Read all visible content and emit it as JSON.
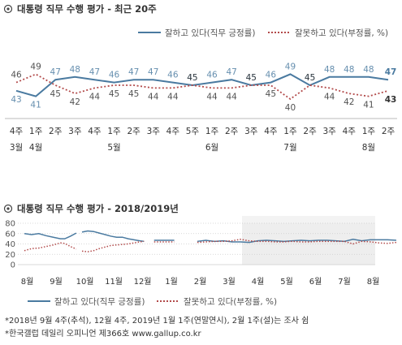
{
  "colors": {
    "approve": "#4a7aa0",
    "disapprove": "#b24a4a",
    "approve_label": "#4a7aa0",
    "disapprove_label": "#333333",
    "grid": "#cccccc",
    "shade": "#eeeeee"
  },
  "chart_data": [
    {
      "type": "line",
      "title": "대통령 직무 수행 평가 - 최근 20주",
      "title_icon": "target-circle-icon",
      "legend": {
        "approve": "잘하고 있다(직무 긍정률)",
        "disapprove": "잘못하고 있다(부정률, %)"
      },
      "x": [
        "4주|3월",
        "1주|4월",
        "2주",
        "3주",
        "4주",
        "1주|5월",
        "2주",
        "3주",
        "4주",
        "5주",
        "1주|6월",
        "2주",
        "3주",
        "4주",
        "1주|7월",
        "2주",
        "3주",
        "4주",
        "1주|8월",
        "2주"
      ],
      "series": [
        {
          "name": "잘하고 있다(직무 긍정률)",
          "key": "approve",
          "values": [
            43,
            41,
            47,
            48,
            47,
            46,
            47,
            47,
            46,
            45,
            46,
            47,
            45,
            46,
            49,
            45,
            48,
            48,
            48,
            47
          ]
        },
        {
          "name": "잘못하고 있다(부정률, %)",
          "key": "disapprove",
          "values": [
            46,
            49,
            45,
            42,
            44,
            45,
            45,
            44,
            44,
            45,
            44,
            44,
            45,
            45,
            40,
            45,
            44,
            42,
            41,
            43
          ]
        }
      ],
      "ylim": [
        35,
        55
      ]
    },
    {
      "type": "line",
      "title": "대통령 직무 수행 평가 - 2018/2019년",
      "title_icon": "target-circle-icon",
      "x_labels": [
        "8월",
        "9월",
        "10월",
        "11월",
        "12월",
        "1월",
        "2월",
        "3월",
        "4월",
        "5월",
        "6월",
        "7월",
        "8월"
      ],
      "y_ticks": [
        0,
        20,
        40,
        60,
        80
      ],
      "ylim": [
        0,
        80
      ],
      "highlight": "4월–8월",
      "legend": {
        "approve": "잘하고 있다(직무 긍정률)",
        "disapprove": "잘못하고 있다(부정률, %)"
      },
      "series": [
        {
          "name": "잘하고 있다(직무 긍정률)",
          "key": "approve",
          "segments": [
            [
              [
                0,
                60
              ],
              [
                0.25,
                58
              ],
              [
                0.5,
                60
              ],
              [
                0.75,
                56
              ],
              [
                1,
                53
              ],
              [
                1.25,
                50
              ],
              [
                1.4,
                50
              ],
              [
                1.6,
                55
              ],
              [
                1.8,
                61
              ]
            ],
            [
              [
                2.0,
                63
              ],
              [
                2.2,
                65
              ],
              [
                2.4,
                64
              ],
              [
                2.6,
                61
              ],
              [
                2.8,
                58
              ],
              [
                3.0,
                55
              ],
              [
                3.2,
                53
              ],
              [
                3.4,
                53
              ],
              [
                3.6,
                50
              ],
              [
                3.8,
                48
              ],
              [
                4.0,
                46
              ],
              [
                4.15,
                45
              ]
            ],
            [
              [
                4.5,
                47
              ],
              [
                5.2,
                47
              ]
            ],
            [
              [
                6.0,
                45
              ],
              [
                6.3,
                47
              ],
              [
                6.6,
                45
              ],
              [
                6.9,
                46
              ],
              [
                7.2,
                44
              ],
              [
                7.5,
                44
              ],
              [
                7.8,
                43
              ],
              [
                8.1,
                46
              ],
              [
                8.4,
                47
              ],
              [
                8.7,
                46
              ],
              [
                9.0,
                45
              ],
              [
                9.3,
                46
              ],
              [
                9.6,
                47
              ],
              [
                9.9,
                46
              ],
              [
                10.2,
                47
              ],
              [
                10.5,
                47
              ],
              [
                10.8,
                46
              ],
              [
                11.1,
                45
              ],
              [
                11.4,
                49
              ],
              [
                11.7,
                46
              ],
              [
                12.0,
                48
              ],
              [
                12.3,
                48
              ],
              [
                12.6,
                48
              ],
              [
                12.9,
                47
              ]
            ]
          ]
        },
        {
          "name": "잘못하고 있다(부정률, %)",
          "key": "disapprove",
          "segments": [
            [
              [
                0,
                27
              ],
              [
                0.25,
                31
              ],
              [
                0.5,
                32
              ],
              [
                0.75,
                35
              ],
              [
                1,
                38
              ],
              [
                1.25,
                42
              ],
              [
                1.4,
                41
              ],
              [
                1.6,
                35
              ],
              [
                1.8,
                30
              ]
            ],
            [
              [
                2.0,
                26
              ],
              [
                2.2,
                25
              ],
              [
                2.4,
                27
              ],
              [
                2.6,
                31
              ],
              [
                2.8,
                34
              ],
              [
                3.0,
                37
              ],
              [
                3.2,
                38
              ],
              [
                3.4,
                39
              ],
              [
                3.6,
                40
              ],
              [
                3.8,
                42
              ],
              [
                4.0,
                44
              ],
              [
                4.15,
                45
              ]
            ],
            [
              [
                4.5,
                44
              ],
              [
                5.2,
                44
              ]
            ],
            [
              [
                6.0,
                43
              ],
              [
                6.3,
                44
              ],
              [
                6.6,
                45
              ],
              [
                6.9,
                45
              ],
              [
                7.2,
                46
              ],
              [
                7.5,
                49
              ],
              [
                7.8,
                46
              ],
              [
                8.1,
                45
              ],
              [
                8.4,
                45
              ],
              [
                8.7,
                44
              ],
              [
                9.0,
                44
              ],
              [
                9.3,
                45
              ],
              [
                9.6,
                44
              ],
              [
                9.9,
                44
              ],
              [
                10.2,
                45
              ],
              [
                10.5,
                45
              ],
              [
                10.8,
                45
              ],
              [
                11.1,
                45
              ],
              [
                11.4,
                40
              ],
              [
                11.7,
                45
              ],
              [
                12.0,
                44
              ],
              [
                12.3,
                42
              ],
              [
                12.6,
                41
              ],
              [
                12.9,
                43
              ]
            ]
          ]
        }
      ]
    }
  ],
  "notes": [
    "*2018년 9월 4주(추석), 12월 4주, 2019년 1월 1주(연말연시), 2월 1주(설)는 조사 쉼",
    "*한국갤럽 데일리 오피니언 제366호 www.gallup.co.kr"
  ]
}
